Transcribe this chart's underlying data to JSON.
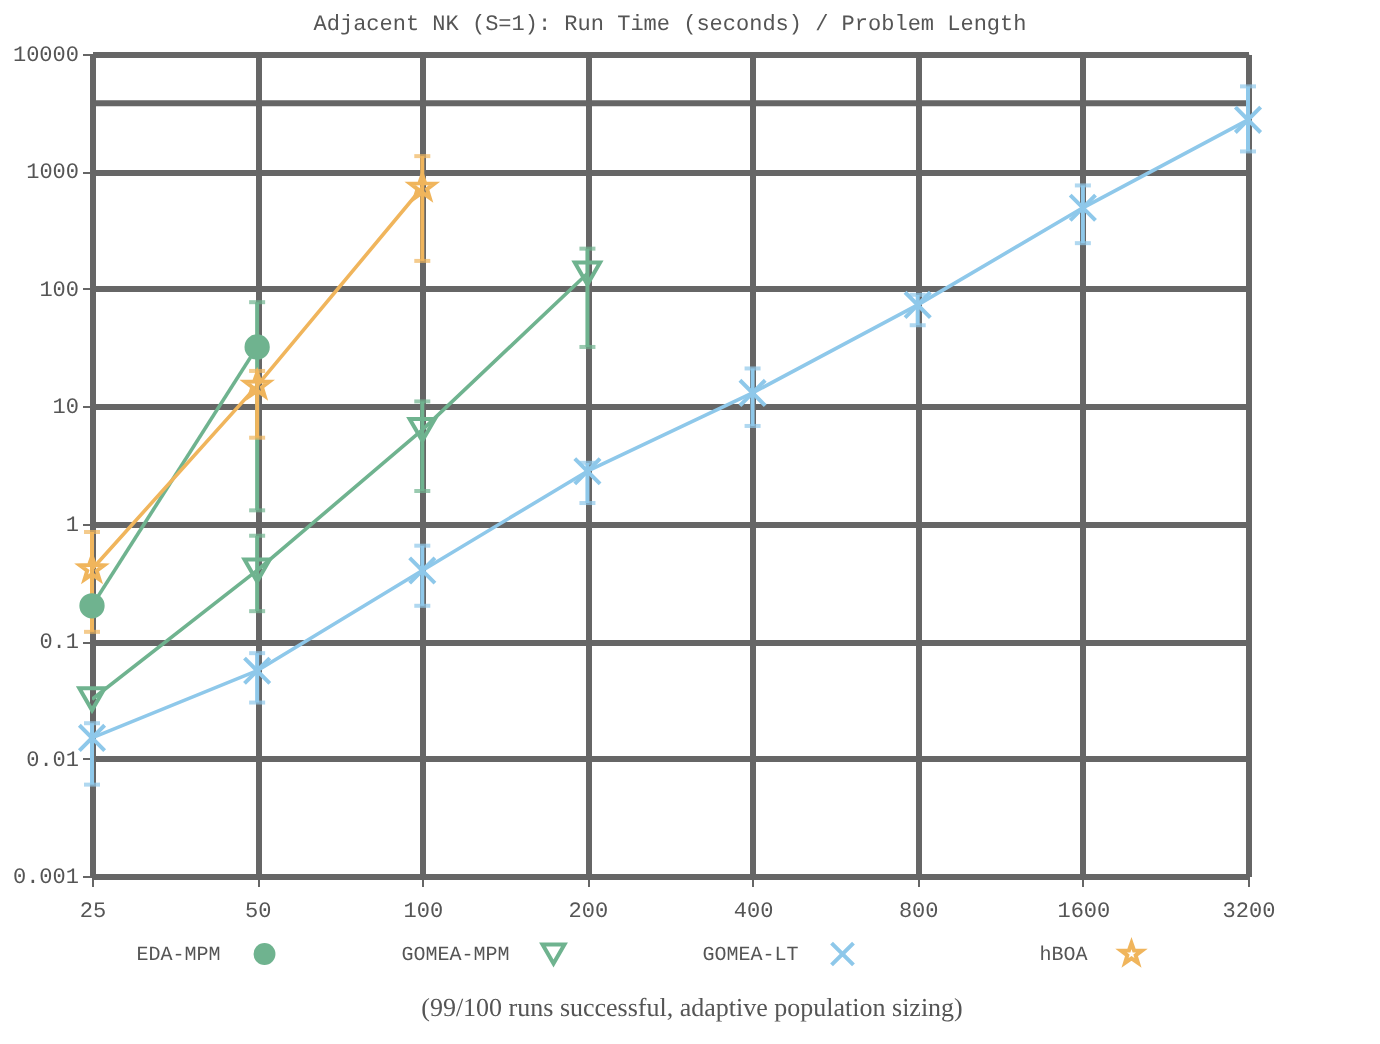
{
  "chart_data": {
    "type": "line",
    "title": "Adjacent NK (S=1):  Run Time (seconds) / Problem Length",
    "annotations": [
      "(99/100 runs successful, adaptive population sizing)"
    ],
    "log": "xy",
    "grid": true,
    "legend": "bottom",
    "xlim": [
      25,
      3200
    ],
    "xticks": [
      25,
      50,
      100,
      200,
      400,
      800,
      1600,
      3200
    ],
    "ylim": [
      0.001,
      10000
    ],
    "yticks": [
      0.001,
      0.01,
      0.1,
      1,
      10,
      100,
      1000,
      10000
    ],
    "ref_lines": [
      {
        "axis": "y",
        "value": 3800,
        "color": "#666666"
      }
    ],
    "series": [
      {
        "name": "EDA-MPM",
        "color": "#6fb38f",
        "marker": "circle",
        "x": [
          25,
          50
        ],
        "values": [
          0.2,
          32
        ],
        "errors": [
          null,
          [
            1.3,
            77
          ]
        ]
      },
      {
        "name": "GOMEA-MPM",
        "color": "#6fb38f",
        "marker": "triangle",
        "x": [
          25,
          50,
          100,
          200
        ],
        "values": [
          0.032,
          0.4,
          6.3,
          135
        ],
        "errors": [
          null,
          [
            0.18,
            0.79
          ],
          [
            1.9,
            11
          ],
          [
            32,
            220
          ]
        ]
      },
      {
        "name": "GOMEA-LT",
        "color": "#8ec8ea",
        "marker": "cross",
        "x": [
          25,
          50,
          100,
          200,
          400,
          800,
          1600,
          3200
        ],
        "values": [
          0.015,
          0.056,
          0.4,
          2.8,
          13,
          73,
          490,
          2750
        ],
        "errors": [
          [
            0.006,
            0.02
          ],
          [
            0.03,
            0.079
          ],
          [
            0.2,
            0.65
          ],
          [
            1.5,
            3.3
          ],
          [
            6.8,
            21
          ],
          [
            49,
            89
          ],
          [
            245,
            760
          ],
          [
            1480,
            5300
          ]
        ]
      },
      {
        "name": "hBOA",
        "color": "#f0b55c",
        "marker": "star",
        "x": [
          25,
          50,
          100
        ],
        "values": [
          0.41,
          15,
          730
        ],
        "errors": [
          [
            0.12,
            0.85
          ],
          [
            5.4,
            20
          ],
          [
            173,
            1350
          ]
        ]
      }
    ]
  }
}
